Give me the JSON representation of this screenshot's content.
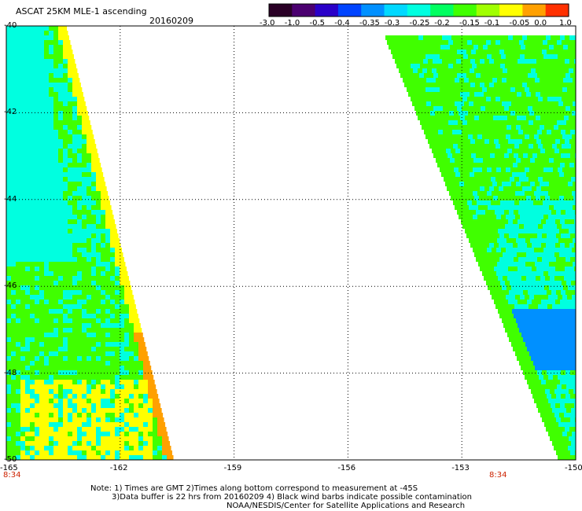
{
  "header": {
    "title": "ASCAT 25KM MLE-1 ascending",
    "date": "20160209"
  },
  "colorbar": {
    "labels": [
      "-3.0",
      "-1.0",
      "-0.5",
      "-0.4",
      "-0.35",
      "-0.3",
      "-0.25",
      "-0.2",
      "-0.15",
      "-0.1",
      "-0.05",
      "0.0",
      "1.0"
    ],
    "colors": [
      "#2a0026",
      "#4b0070",
      "#2a00c8",
      "#0044ff",
      "#0090ff",
      "#00d8ff",
      "#00ffe0",
      "#00ff60",
      "#40ff00",
      "#a0ff00",
      "#ffff00",
      "#ffa000",
      "#ff3000"
    ]
  },
  "map": {
    "lat_labels": [
      "-40",
      "-42",
      "-44",
      "-46",
      "-48",
      "-50"
    ],
    "lon_labels": [
      "-165",
      "-162",
      "-159",
      "-156",
      "-153",
      "-150"
    ],
    "lat_range": [
      -50,
      -40
    ],
    "lon_range": [
      -165,
      -150
    ],
    "times": [
      "8:34",
      "8:34"
    ],
    "swath_colors": {
      "west_low": "#00ffe0",
      "west_mid": "#40ff00",
      "west_high": "#ffff00",
      "west_edge": "#ffa000",
      "east_main": "#40ff00",
      "east_cyan": "#00ffe0",
      "east_blue": "#0090ff"
    }
  },
  "notes": {
    "line1": "Note: 1) Times are GMT 2)Times along bottom correspond to measurement at -45S",
    "line2": "3)Data buffer is 22 hrs from 20160209 4) Black wind barbs indicate possible contamination",
    "line3": "NOAA/NESDIS/Center for Satellite Applications and Research"
  }
}
